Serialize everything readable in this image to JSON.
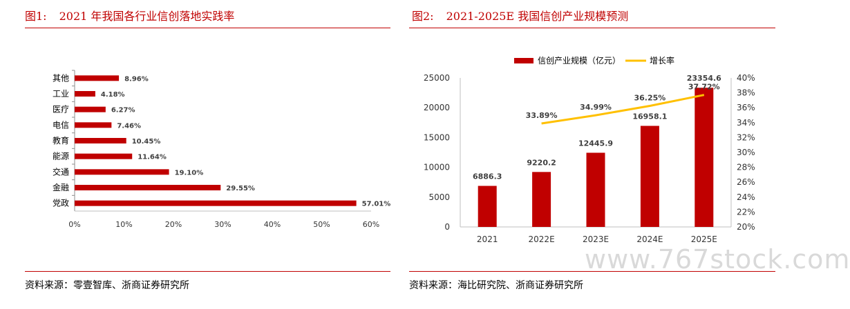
{
  "left": {
    "title_num": "图1:",
    "title": "2021 年我国各行业信创落地实践率",
    "source": "资料来源：零壹智库、浙商证券研究所"
  },
  "right": {
    "title_num": "图2:",
    "title": "2021-2025E 我国信创产业规模预测",
    "source": "资料来源：海比研究院、浙商证券研究所"
  },
  "watermark": "www.767stock.com",
  "colors": {
    "accent": "#c00000",
    "bar": "#c00000",
    "line": "#ffc000"
  },
  "chart_data": [
    {
      "type": "bar",
      "orientation": "horizontal",
      "categories": [
        "其他",
        "工业",
        "医疗",
        "电信",
        "教育",
        "能源",
        "交通",
        "金融",
        "党政"
      ],
      "values": [
        8.96,
        4.18,
        6.27,
        7.46,
        10.45,
        11.64,
        19.1,
        29.55,
        57.01
      ],
      "value_labels": [
        "8.96%",
        "4.18%",
        "6.27%",
        "7.46%",
        "10.45%",
        "11.64%",
        "19.10%",
        "29.55%",
        "57.01%"
      ],
      "x_ticks": [
        "0%",
        "10%",
        "20%",
        "30%",
        "40%",
        "50%",
        "60%"
      ],
      "xlim": [
        0,
        60
      ],
      "grid": false
    },
    {
      "type": "bar",
      "categories": [
        "2021",
        "2022E",
        "2023E",
        "2024E",
        "2025E"
      ],
      "series": [
        {
          "name": "信创产业规模（亿元）",
          "type": "bar",
          "axis": "left",
          "values": [
            6886.3,
            9220.2,
            12445.9,
            16958.1,
            23354.6
          ],
          "labels": [
            "6886.3",
            "9220.2",
            "12445.9",
            "16958.1",
            "23354.6"
          ]
        },
        {
          "name": "增长率",
          "type": "line",
          "axis": "right",
          "values": [
            null,
            33.89,
            34.99,
            36.25,
            37.72
          ],
          "labels": [
            "",
            "33.89%",
            "34.99%",
            "36.25%",
            "37.72%"
          ]
        }
      ],
      "y_ticks": [
        "0",
        "5000",
        "10000",
        "15000",
        "20000",
        "25000"
      ],
      "ylim": [
        0,
        25000
      ],
      "y2_ticks": [
        "20%",
        "22%",
        "24%",
        "26%",
        "28%",
        "30%",
        "32%",
        "34%",
        "36%",
        "38%",
        "40%"
      ],
      "y2lim": [
        20,
        40
      ],
      "legend": "top",
      "grid": false
    }
  ]
}
